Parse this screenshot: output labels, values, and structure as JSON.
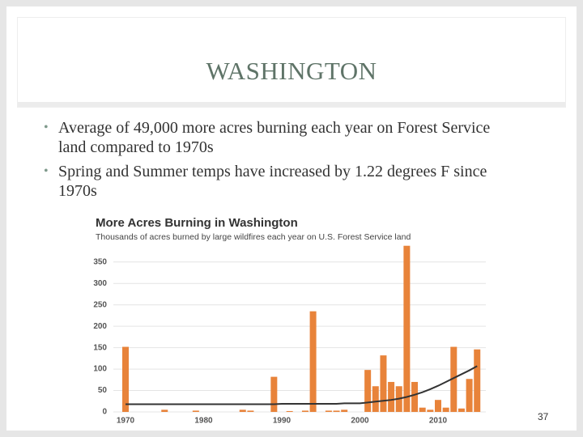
{
  "slide": {
    "title": "WASHINGTON",
    "bullets": [
      "Average of 49,000 more acres burning each year on Forest Service land compared to 1970s",
      "Spring and Summer temps have increased by 1.22 degrees F since 1970s"
    ],
    "page_number": "37"
  },
  "chart_data": {
    "type": "bar",
    "title": "More Acres Burning in Washington",
    "subtitle": "Thousands of acres burned by large wildfires each year on U.S. Forest Service land",
    "categories": [
      "1970",
      null,
      null,
      null,
      null,
      null,
      null,
      null,
      null,
      null,
      "1980",
      null,
      null,
      null,
      null,
      null,
      null,
      null,
      null,
      null,
      "1990",
      null,
      null,
      null,
      null,
      null,
      null,
      null,
      null,
      null,
      "2000",
      null,
      null,
      null,
      null,
      null,
      null,
      null,
      null,
      null,
      "2010",
      null,
      null,
      null,
      null,
      null
    ],
    "values": [
      152,
      0,
      0,
      0,
      0,
      5,
      0,
      0,
      0,
      3,
      0,
      0,
      0,
      0,
      0,
      5,
      3,
      0,
      0,
      82,
      0,
      2,
      0,
      3,
      235,
      0,
      3,
      3,
      5,
      0,
      0,
      98,
      60,
      132,
      70,
      60,
      388,
      70,
      10,
      5,
      28,
      10,
      152,
      8,
      77,
      146
    ],
    "trend": [
      18,
      18,
      18,
      18,
      18,
      18,
      18,
      18,
      18,
      18,
      18,
      18,
      18,
      18,
      18,
      18,
      18,
      18,
      18,
      18,
      19,
      19,
      19,
      19,
      19,
      19,
      19,
      19,
      20,
      20,
      20,
      22,
      24,
      26,
      28,
      31,
      35,
      40,
      46,
      53,
      61,
      70,
      79,
      88,
      97,
      107
    ],
    "color": "#e8833a",
    "trend_color": "#333333",
    "ylim": [
      0,
      395
    ],
    "yticks": [
      0,
      50,
      100,
      150,
      200,
      250,
      300,
      350
    ],
    "grid": true
  }
}
